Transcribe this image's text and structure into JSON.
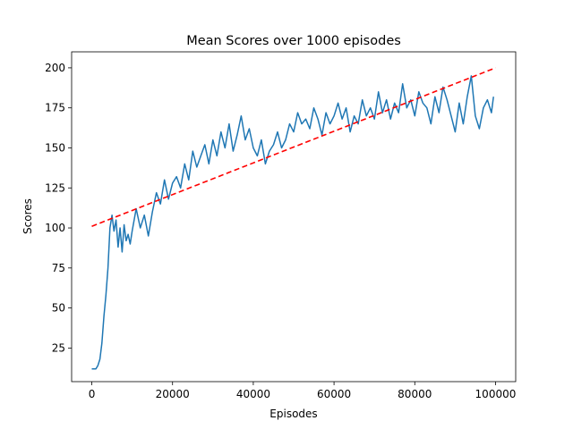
{
  "chart_data": {
    "type": "line",
    "title": "Mean Scores over 1000 episodes",
    "xlabel": "Episodes",
    "ylabel": "Scores",
    "xlim": [
      -5000,
      105000
    ],
    "ylim": [
      4,
      210
    ],
    "xticks": [
      0,
      20000,
      40000,
      60000,
      80000,
      100000
    ],
    "yticks": [
      25,
      50,
      75,
      100,
      125,
      150,
      175,
      200
    ],
    "grid": false,
    "series": [
      {
        "style": "solid",
        "color": "#1f77b4",
        "x": [
          0,
          1000,
          1500,
          2000,
          2500,
          3000,
          3500,
          4000,
          4500,
          5000,
          5500,
          6000,
          6500,
          7000,
          7500,
          8000,
          8500,
          9000,
          9500,
          10000,
          11000,
          12000,
          13000,
          14000,
          15000,
          16000,
          17000,
          18000,
          19000,
          20000,
          21000,
          22000,
          23000,
          24000,
          25000,
          26000,
          27000,
          28000,
          29000,
          30000,
          31000,
          32000,
          33000,
          34000,
          35000,
          36000,
          37000,
          38000,
          39000,
          40000,
          41000,
          42000,
          43000,
          44000,
          45000,
          46000,
          47000,
          48000,
          49000,
          50000,
          51000,
          52000,
          53000,
          54000,
          55000,
          56000,
          57000,
          58000,
          59000,
          60000,
          61000,
          62000,
          63000,
          64000,
          65000,
          66000,
          67000,
          68000,
          69000,
          70000,
          71000,
          72000,
          73000,
          74000,
          75000,
          76000,
          77000,
          78000,
          79000,
          80000,
          81000,
          82000,
          83000,
          84000,
          85000,
          86000,
          87000,
          88000,
          89000,
          90000,
          91000,
          92000,
          93000,
          94000,
          95000,
          96000,
          97000,
          98000,
          99000,
          99500
        ],
        "y": [
          12,
          12,
          14,
          18,
          28,
          45,
          58,
          75,
          100,
          108,
          98,
          105,
          88,
          100,
          85,
          102,
          92,
          96,
          90,
          98,
          112,
          100,
          108,
          95,
          110,
          122,
          115,
          130,
          118,
          128,
          132,
          125,
          140,
          130,
          148,
          138,
          145,
          152,
          140,
          155,
          145,
          160,
          150,
          165,
          148,
          158,
          170,
          155,
          162,
          150,
          145,
          155,
          140,
          148,
          152,
          160,
          150,
          155,
          165,
          160,
          172,
          165,
          168,
          162,
          175,
          168,
          158,
          172,
          165,
          170,
          178,
          168,
          175,
          160,
          170,
          165,
          180,
          170,
          175,
          168,
          185,
          172,
          180,
          168,
          178,
          172,
          190,
          175,
          180,
          170,
          185,
          178,
          175,
          165,
          182,
          172,
          188,
          180,
          170,
          160,
          178,
          165,
          182,
          195,
          170,
          162,
          175,
          180,
          172,
          182
        ]
      },
      {
        "style": "dashed",
        "color": "#ff0000",
        "x": [
          0,
          100000
        ],
        "y": [
          101,
          200
        ]
      }
    ]
  }
}
